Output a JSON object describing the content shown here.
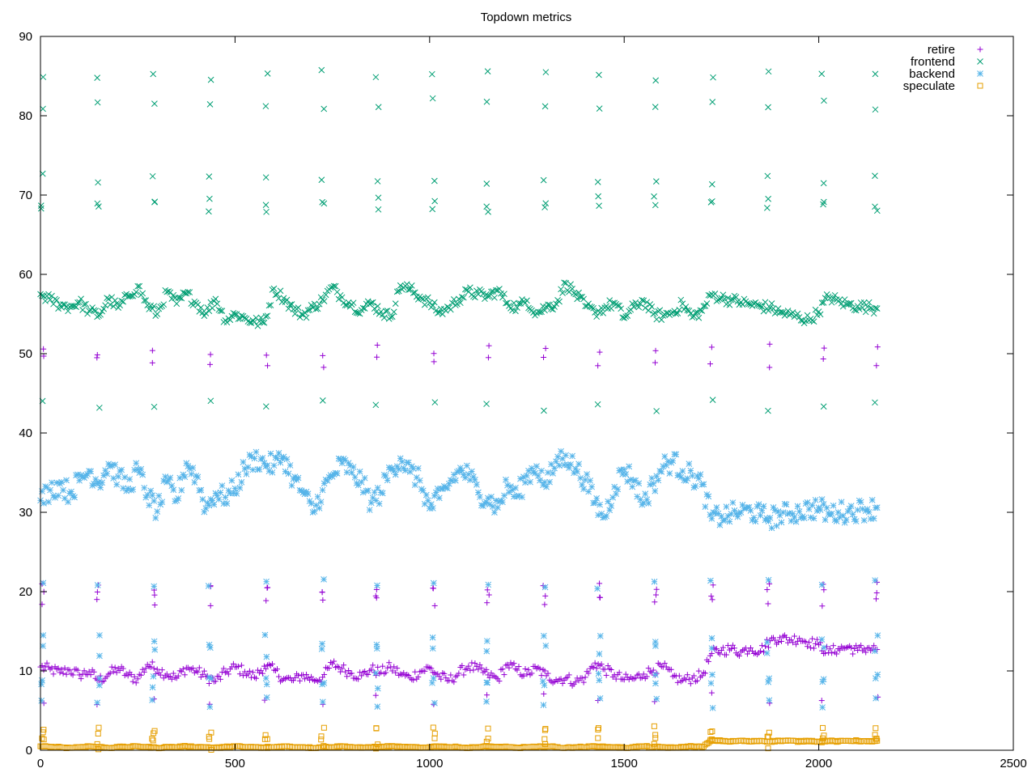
{
  "chart_data": {
    "type": "scatter",
    "title": "Topdown metrics",
    "xlabel": "",
    "ylabel": "",
    "xlim": [
      0,
      2500
    ],
    "ylim": [
      0,
      90
    ],
    "xticks": [
      "0",
      "500",
      "1000",
      "1500",
      "2000",
      "2500"
    ],
    "yticks": [
      "0",
      "10",
      "20",
      "30",
      "40",
      "50",
      "60",
      "70",
      "80",
      "90"
    ],
    "grid": false,
    "legend_position": "top-right",
    "x": [
      0,
      25,
      50,
      75,
      100,
      125,
      150,
      175,
      200,
      225,
      250,
      275,
      300,
      325,
      350,
      375,
      400,
      425,
      450,
      475,
      500,
      525,
      550,
      575,
      600,
      625,
      650,
      675,
      700,
      725,
      750,
      775,
      800,
      825,
      850,
      875,
      900,
      925,
      950,
      975,
      1000,
      1025,
      1050,
      1075,
      1100,
      1125,
      1150,
      1175,
      1200,
      1225,
      1250,
      1275,
      1300,
      1325,
      1350,
      1375,
      1400,
      1425,
      1450,
      1475,
      1500,
      1525,
      1550,
      1575,
      1600,
      1625,
      1650,
      1675,
      1700,
      1725,
      1750,
      1775,
      1800,
      1825,
      1850,
      1875,
      1900,
      1925,
      1950,
      1975,
      2000,
      2025,
      2050,
      2075,
      2100,
      2125,
      2150
    ],
    "spike_x": [
      5,
      148,
      290,
      435,
      580,
      725,
      865,
      1010,
      1150,
      1295,
      1435,
      1580,
      1725,
      1870,
      2010,
      2148
    ],
    "series": [
      {
        "name": "retire",
        "marker": "plus",
        "color": "#9400d3",
        "values": [
          10.5,
          10.2,
          9.8,
          10.1,
          9.5,
          9.9,
          8.8,
          9.6,
          10.3,
          9.4,
          9.0,
          10.8,
          10.2,
          9.6,
          9.1,
          10.4,
          10.0,
          9.3,
          8.7,
          9.8,
          10.5,
          9.9,
          9.2,
          10.6,
          10.1,
          9.0,
          8.8,
          9.5,
          8.9,
          9.2,
          10.9,
          10.3,
          9.7,
          9.4,
          10.2,
          9.8,
          10.5,
          9.6,
          9.1,
          9.9,
          10.4,
          9.3,
          8.8,
          9.7,
          10.6,
          10.2,
          9.5,
          9.0,
          10.8,
          10.1,
          9.6,
          10.3,
          9.4,
          8.9,
          9.1,
          8.6,
          9.2,
          11.0,
          10.2,
          9.5,
          8.9,
          9.0,
          9.6,
          10.1,
          10.5,
          9.3,
          8.8,
          9.1,
          9.4,
          12.2,
          12.6,
          12.8,
          12.4,
          12.9,
          12.5,
          13.8,
          14.2,
          13.9,
          14.1,
          13.6,
          13.3,
          12.3,
          12.8,
          13.0,
          12.6,
          12.9,
          12.7
        ],
        "spike_values": [
          20.5,
          20.0,
          18.5,
          50.5,
          49.0,
          6.5
        ]
      },
      {
        "name": "frontend",
        "marker": "cross",
        "color": "#009e73",
        "values": [
          57.5,
          56.8,
          56.2,
          55.9,
          56.5,
          55.4,
          54.8,
          56.9,
          55.8,
          57.2,
          58.5,
          56.1,
          55.0,
          57.8,
          56.3,
          57.6,
          56.4,
          55.1,
          56.9,
          54.2,
          55.0,
          54.5,
          54.0,
          53.9,
          58.2,
          57.0,
          55.6,
          54.9,
          55.8,
          56.8,
          58.4,
          57.1,
          56.2,
          55.5,
          56.4,
          55.3,
          54.6,
          58.6,
          58.1,
          57.2,
          56.4,
          55.2,
          55.8,
          56.9,
          57.8,
          57.5,
          57.2,
          58.0,
          56.4,
          55.8,
          56.7,
          55.1,
          55.9,
          56.3,
          58.9,
          57.5,
          56.0,
          55.2,
          55.8,
          56.4,
          54.5,
          55.9,
          56.7,
          55.0,
          54.8,
          55.2,
          56.3,
          54.6,
          55.4,
          57.5,
          57.0,
          56.8,
          56.5,
          56.2,
          56.0,
          55.8,
          55.2,
          54.9,
          54.6,
          54.2,
          55.3,
          57.2,
          56.6,
          56.2,
          56.0,
          55.9,
          55.7
        ],
        "spike_values": [
          68.5,
          69.2,
          72.0,
          85.2,
          81.5,
          43.5
        ]
      },
      {
        "name": "backend",
        "marker": "star",
        "color": "#56b4e9",
        "values": [
          31.5,
          32.8,
          33.6,
          32.4,
          34.0,
          35.2,
          33.8,
          36.1,
          34.5,
          33.0,
          35.4,
          32.2,
          30.1,
          33.8,
          31.5,
          36.2,
          34.6,
          30.5,
          32.4,
          31.9,
          33.0,
          35.5,
          36.8,
          36.2,
          35.9,
          37.0,
          34.2,
          32.5,
          30.0,
          32.8,
          34.5,
          36.2,
          35.0,
          33.8,
          31.2,
          32.5,
          35.4,
          36.8,
          35.1,
          34.0,
          30.5,
          31.8,
          33.6,
          35.2,
          34.8,
          32.5,
          31.8,
          30.6,
          33.4,
          32.0,
          34.6,
          35.8,
          33.2,
          36.4,
          37.2,
          35.5,
          34.1,
          31.2,
          29.4,
          33.2,
          35.4,
          34.0,
          31.2,
          33.6,
          35.8,
          36.5,
          35.2,
          34.6,
          33.5,
          29.2,
          29.5,
          29.8,
          30.0,
          30.2,
          29.6,
          29.3,
          29.6,
          29.9,
          30.1,
          30.4,
          30.6,
          29.8,
          30.0,
          30.1,
          30.3,
          30.4,
          30.6
        ],
        "spike_values": [
          9.0,
          8.5,
          14.0,
          12.5,
          6.0,
          21.0
        ]
      },
      {
        "name": "speculate",
        "marker": "square",
        "color": "#e69f00",
        "values": [
          0.5,
          0.4,
          0.4,
          0.3,
          0.4,
          0.5,
          0.4,
          0.3,
          0.4,
          0.4,
          0.5,
          0.4,
          0.3,
          0.4,
          0.4,
          0.5,
          0.4,
          0.4,
          0.3,
          0.4,
          0.5,
          0.4,
          0.4,
          0.3,
          0.4,
          0.5,
          0.4,
          0.4,
          0.3,
          0.4,
          0.4,
          0.5,
          0.4,
          0.3,
          0.4,
          0.4,
          0.5,
          0.4,
          0.4,
          0.3,
          0.4,
          0.5,
          0.4,
          0.4,
          0.3,
          0.4,
          0.5,
          0.4,
          0.4,
          0.3,
          0.4,
          0.4,
          0.5,
          0.4,
          0.3,
          0.4,
          0.4,
          0.5,
          0.4,
          0.4,
          0.3,
          0.4,
          0.5,
          0.4,
          0.4,
          0.3,
          0.4,
          0.5,
          0.4,
          1.2,
          1.2,
          1.1,
          1.2,
          1.1,
          1.2,
          1.1,
          1.2,
          1.2,
          1.1,
          1.2,
          1.1,
          1.2,
          1.1,
          1.2,
          1.2,
          1.1,
          1.2
        ],
        "spike_values": [
          2.3,
          2.1,
          1.0,
          0.8
        ]
      }
    ]
  }
}
